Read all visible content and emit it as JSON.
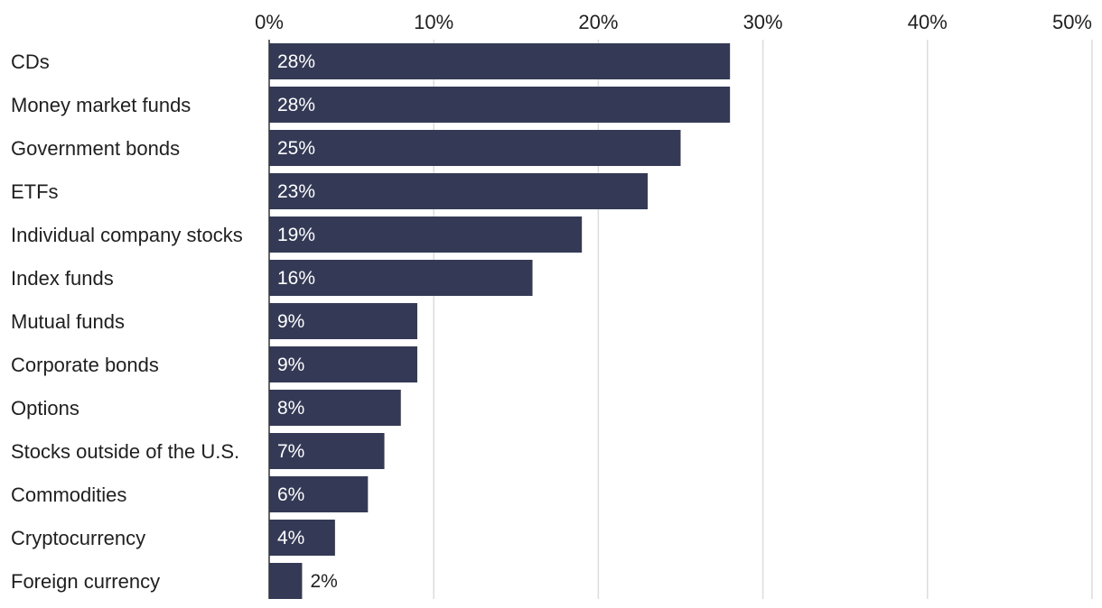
{
  "chart_data": {
    "type": "bar",
    "orientation": "horizontal",
    "title": "",
    "xlabel": "",
    "ylabel": "",
    "xlim": [
      0,
      50
    ],
    "ticks": [
      0,
      10,
      20,
      30,
      40,
      50
    ],
    "tick_labels": [
      "0%",
      "10%",
      "20%",
      "30%",
      "40%",
      "50%"
    ],
    "grid": true,
    "categories": [
      "CDs",
      "Money market funds",
      "Government bonds",
      "ETFs",
      "Individual company stocks",
      "Index funds",
      "Mutual funds",
      "Corporate bonds",
      "Options",
      "Stocks outside of the U.S.",
      "Commodities",
      "Cryptocurrency",
      "Foreign currency"
    ],
    "values": [
      28,
      28,
      25,
      23,
      19,
      16,
      9,
      9,
      8,
      7,
      6,
      4,
      2
    ],
    "value_labels": [
      "28%",
      "28%",
      "25%",
      "23%",
      "19%",
      "16%",
      "9%",
      "9%",
      "8%",
      "7%",
      "6%",
      "4%",
      "2%"
    ],
    "bar_color": "#343a56",
    "grid_color": "#dcdcdc",
    "axis_color": "#333333"
  }
}
